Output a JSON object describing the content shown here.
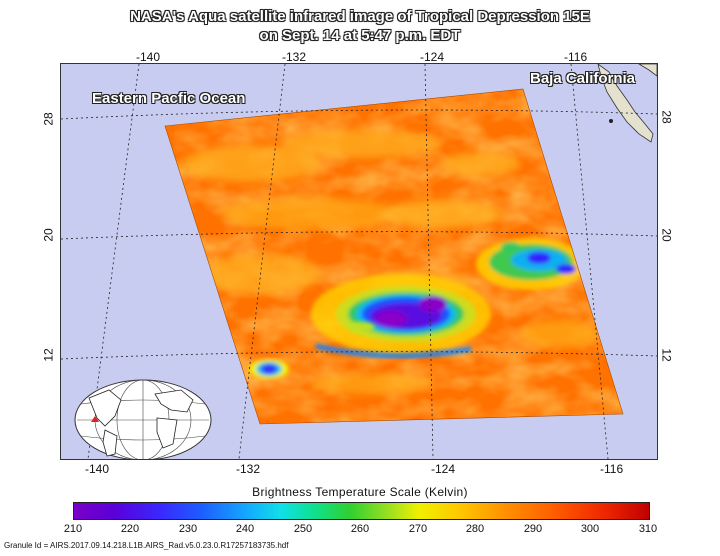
{
  "title_line1": "NASA's Aqua satellite infrared image of Tropical Depression 15E",
  "title_line2": "on Sept. 14 at 5:47 p.m. EDT",
  "lon_ticks_top": [
    "-140",
    "-132",
    "-124",
    "-116"
  ],
  "lon_ticks_bottom": [
    "-140",
    "-132",
    "-124",
    "-116"
  ],
  "lat_ticks_left": [
    "28",
    "20",
    "12"
  ],
  "lat_ticks_right": [
    "28",
    "20",
    "12"
  ],
  "region_labels": {
    "ocean": "Eastern Pacfic Ocean",
    "land": "Baja California"
  },
  "scale_title": "Brightness Temperature Scale (Kelvin)",
  "scale_values": [
    "210",
    "220",
    "230",
    "240",
    "250",
    "260",
    "270",
    "280",
    "290",
    "300",
    "310"
  ],
  "granule_id": "Granule Id = AIRS.2017.09.14.218.L1B.AIRS_Rad.v5.0.23.0.R17257183735.hdf",
  "colors": {
    "ocean": "#c8ccf0",
    "swath_warm": "#ff7a00",
    "storm_core": "#5a00d8",
    "land": "#e0ddc8"
  }
}
